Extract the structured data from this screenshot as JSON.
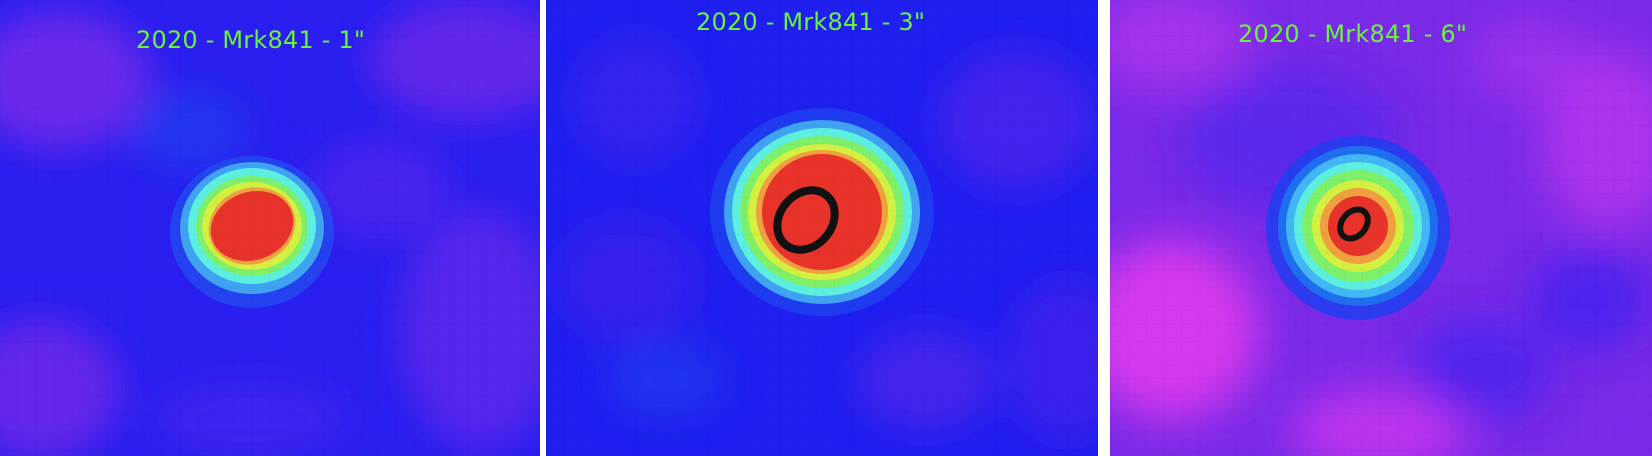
{
  "panels": [
    {
      "id": "panel-1",
      "title": "2020 - Mrk841 - 1\"",
      "background": "#5b1ff0",
      "marker": "none"
    },
    {
      "id": "panel-2",
      "title": "2020 - Mrk841 - 3\"",
      "background": "#2a22f0",
      "marker": "ring"
    },
    {
      "id": "panel-3",
      "title": "2020 - Mrk841 - 6\"",
      "background": "#8a2ae8",
      "marker": "ring"
    }
  ],
  "colormap": [
    "#1f1fe8",
    "#3d3df0",
    "#1f6ef0",
    "#42b7f5",
    "#5df0e0",
    "#7ef06a",
    "#d4f040",
    "#f0a040",
    "#f0552e",
    "#e8332a"
  ]
}
